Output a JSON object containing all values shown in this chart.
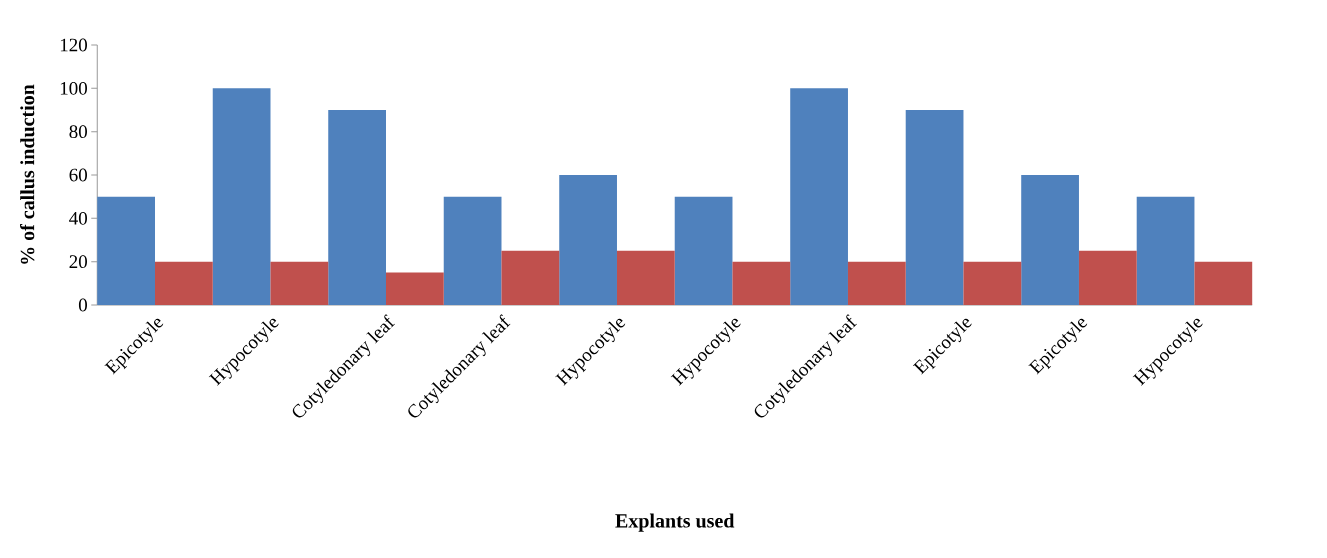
{
  "chart_data": {
    "type": "bar",
    "xlabel": "Explants  used",
    "ylabel": "% of callus induction",
    "categories": [
      "Epicotyle",
      "Hypocotyle",
      "Cotyledonary leaf",
      "Cotyledonary leaf",
      "Hypocotyle",
      "Hypocotyle",
      "Cotyledonary leaf",
      "Epicotyle",
      "Epicotyle",
      "Hypocotyle"
    ],
    "series": [
      {
        "color": "#4f81bd",
        "values": [
          50,
          100,
          90,
          50,
          60,
          50,
          100,
          90,
          60,
          50
        ]
      },
      {
        "color": "#c0504d",
        "values": [
          20,
          20,
          15,
          25,
          25,
          20,
          20,
          20,
          25,
          20
        ]
      }
    ],
    "ylim": [
      0,
      120
    ],
    "yticks": [
      0,
      20,
      40,
      60,
      80,
      100,
      120
    ],
    "grid": false
  }
}
